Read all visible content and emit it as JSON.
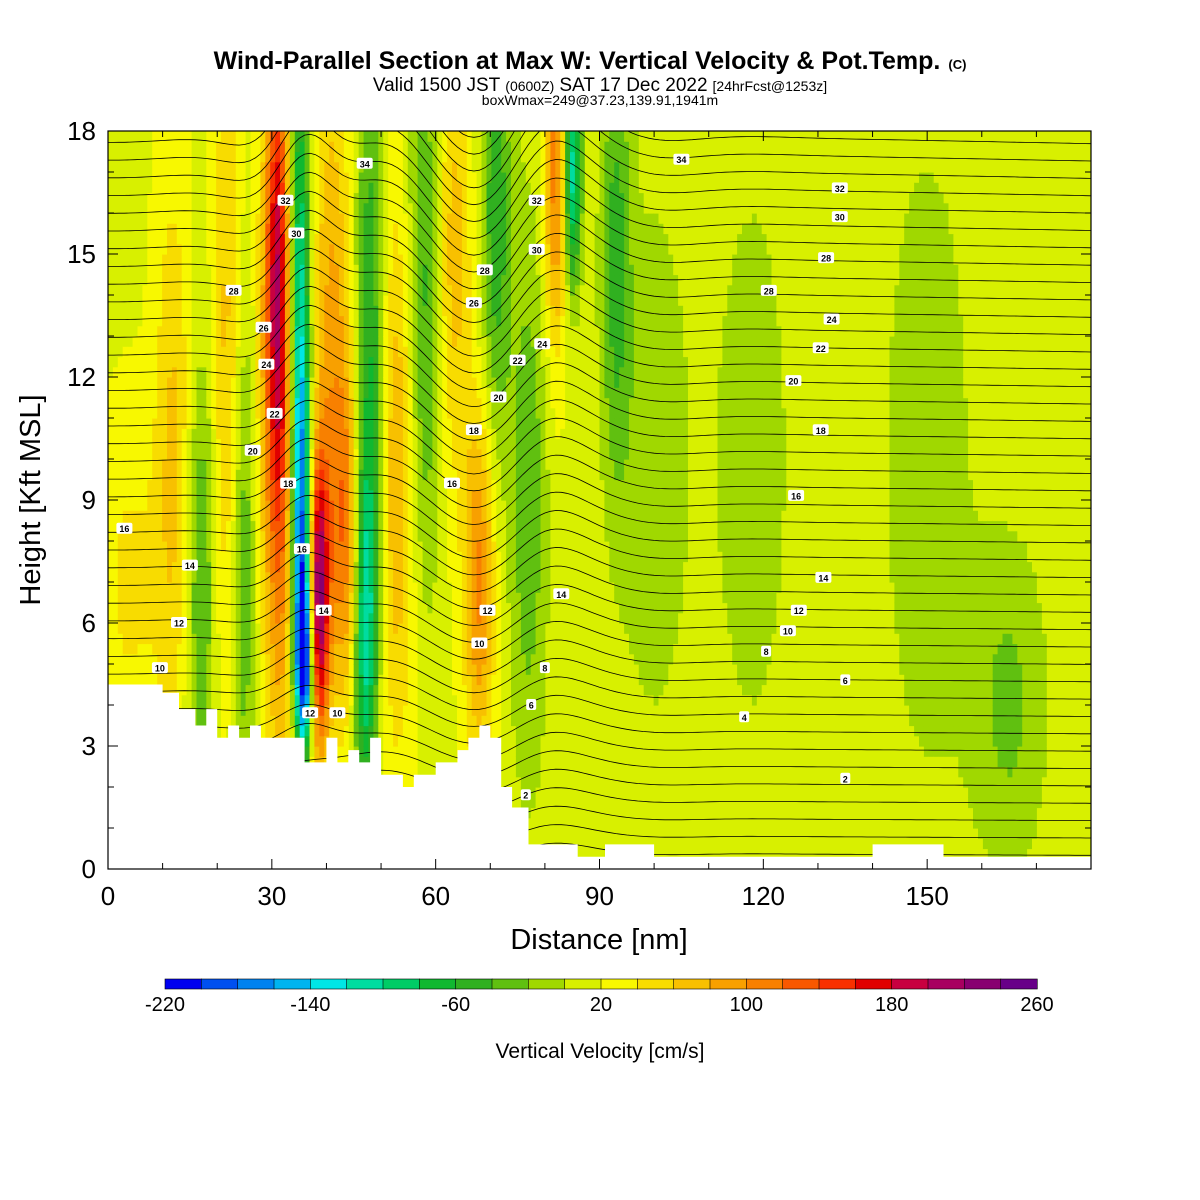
{
  "title": {
    "main": "Wind-Parallel Section at Max W: Vertical Velocity & Pot.Temp.",
    "copyright": "(C)",
    "valid_prefix": "Valid 1500 JST",
    "valid_z": "(0600Z)",
    "valid_date": "SAT 17 Dec 2022",
    "valid_fcst": "[24hrFcst@1253z]",
    "box_info": "boxWmax=249@37.23,139.91,1941m"
  },
  "chart_data": {
    "type": "heatmap",
    "xlabel": "Distance [nm]",
    "ylabel": "Height [Kft MSL]",
    "xlim": [
      0,
      180
    ],
    "ylim": [
      0,
      18
    ],
    "x_ticks": [
      "0",
      "30",
      "60",
      "90",
      "120",
      "150"
    ],
    "x_tick_values": [
      0,
      30,
      60,
      90,
      120,
      150
    ],
    "y_ticks": [
      "0",
      "3",
      "6",
      "9",
      "12",
      "15",
      "18"
    ],
    "y_tick_values": [
      0,
      3,
      6,
      9,
      12,
      15,
      18
    ],
    "colorbar": {
      "label": "Vertical Velocity [cm/s]",
      "tick_labels": [
        "-220",
        "-140",
        "-60",
        "20",
        "100",
        "180",
        "260"
      ],
      "min": -220,
      "max": 260,
      "step": 20,
      "colors": [
        "#0000f0",
        "#0050f0",
        "#0082f0",
        "#00b4f0",
        "#00e6e6",
        "#00dca0",
        "#00cc66",
        "#10b830",
        "#30b020",
        "#60c010",
        "#a0d800",
        "#d8f000",
        "#f8f800",
        "#f8dc00",
        "#f8c000",
        "#f8a000",
        "#f88000",
        "#f85800",
        "#f83000",
        "#e00000",
        "#c80040",
        "#a80060",
        "#880070",
        "#680088"
      ]
    },
    "terrain_kft": [
      [
        0,
        4.5
      ],
      [
        10,
        4.5
      ],
      [
        10,
        4.3
      ],
      [
        13,
        4.3
      ],
      [
        13,
        3.9
      ],
      [
        16,
        3.9
      ],
      [
        16,
        3.5
      ],
      [
        18,
        3.5
      ],
      [
        18,
        3.9
      ],
      [
        20,
        3.9
      ],
      [
        20,
        3.2
      ],
      [
        22,
        3.2
      ],
      [
        22,
        3.5
      ],
      [
        24,
        3.5
      ],
      [
        24,
        3.2
      ],
      [
        26,
        3.2
      ],
      [
        26,
        3.5
      ],
      [
        28,
        3.5
      ],
      [
        28,
        3.2
      ],
      [
        36,
        3.2
      ],
      [
        36,
        2.6
      ],
      [
        40,
        2.6
      ],
      [
        40,
        3.2
      ],
      [
        42,
        3.2
      ],
      [
        42,
        2.6
      ],
      [
        44,
        2.6
      ],
      [
        44,
        2.9
      ],
      [
        46,
        2.9
      ],
      [
        46,
        2.6
      ],
      [
        48,
        2.6
      ],
      [
        48,
        3.2
      ],
      [
        50,
        3.2
      ],
      [
        50,
        2.3
      ],
      [
        54,
        2.3
      ],
      [
        54,
        2.0
      ],
      [
        56,
        2.0
      ],
      [
        56,
        2.3
      ],
      [
        60,
        2.3
      ],
      [
        60,
        2.6
      ],
      [
        64,
        2.6
      ],
      [
        64,
        2.9
      ],
      [
        66,
        2.9
      ],
      [
        66,
        3.2
      ],
      [
        68,
        3.2
      ],
      [
        68,
        3.5
      ],
      [
        70,
        3.5
      ],
      [
        70,
        3.2
      ],
      [
        72,
        3.2
      ],
      [
        72,
        2.0
      ],
      [
        74,
        2.0
      ],
      [
        74,
        1.5
      ],
      [
        77,
        1.5
      ],
      [
        77,
        0.6
      ],
      [
        86,
        0.6
      ],
      [
        86,
        0.3
      ],
      [
        91,
        0.3
      ],
      [
        91,
        0.6
      ],
      [
        100,
        0.6
      ],
      [
        100,
        0.3
      ],
      [
        140,
        0.3
      ],
      [
        140,
        0.6
      ],
      [
        153,
        0.6
      ],
      [
        153,
        0.3
      ],
      [
        180,
        0.3
      ]
    ],
    "w_features": [
      {
        "x": 4,
        "z": 7,
        "w": 30,
        "sx": 4,
        "sz": 3
      },
      {
        "x": 12,
        "z": 10,
        "w": 50,
        "sx": 2.5,
        "sz": 5
      },
      {
        "x": 17,
        "z": 7,
        "w": -60,
        "sx": 2,
        "sz": 4
      },
      {
        "x": 22,
        "z": 12,
        "w": 60,
        "sx": 2,
        "sz": 6
      },
      {
        "x": 25,
        "z": 8,
        "w": -70,
        "sx": 2,
        "sz": 5
      },
      {
        "x": 28,
        "z": 10,
        "w": 40,
        "sx": 2,
        "sz": 5
      },
      {
        "x": 31,
        "z": 15,
        "w": 140,
        "sx": 1.6,
        "sz": 4
      },
      {
        "x": 32,
        "z": 9,
        "w": 90,
        "sx": 2,
        "sz": 5
      },
      {
        "x": 35,
        "z": 14,
        "w": -130,
        "sx": 1.4,
        "sz": 4.5
      },
      {
        "x": 35.5,
        "z": 8,
        "w": -170,
        "sx": 1.3,
        "sz": 3
      },
      {
        "x": 36,
        "z": 5,
        "w": -200,
        "sx": 1.2,
        "sz": 1.5
      },
      {
        "x": 38.5,
        "z": 6.5,
        "w": 210,
        "sx": 1.4,
        "sz": 2.5
      },
      {
        "x": 41,
        "z": 13,
        "w": 70,
        "sx": 2.5,
        "sz": 5
      },
      {
        "x": 44,
        "z": 8,
        "w": 90,
        "sx": 2,
        "sz": 3
      },
      {
        "x": 47,
        "z": 6,
        "w": -130,
        "sx": 1.6,
        "sz": 3
      },
      {
        "x": 48,
        "z": 13,
        "w": -80,
        "sx": 2,
        "sz": 5
      },
      {
        "x": 53,
        "z": 10,
        "w": 70,
        "sx": 2.5,
        "sz": 5
      },
      {
        "x": 58,
        "z": 14,
        "w": -70,
        "sx": 2.5,
        "sz": 5
      },
      {
        "x": 63,
        "z": 15,
        "w": 60,
        "sx": 2.5,
        "sz": 4
      },
      {
        "x": 68,
        "z": 7,
        "w": 90,
        "sx": 2,
        "sz": 3
      },
      {
        "x": 71,
        "z": 16,
        "w": -70,
        "sx": 2,
        "sz": 4
      },
      {
        "x": 77,
        "z": 9,
        "w": -50,
        "sx": 2.5,
        "sz": 5
      },
      {
        "x": 82,
        "z": 17,
        "w": 100,
        "sx": 1.5,
        "sz": 3
      },
      {
        "x": 85,
        "z": 17,
        "w": -130,
        "sx": 1.2,
        "sz": 2
      },
      {
        "x": 93,
        "z": 15,
        "w": -60,
        "sx": 2,
        "sz": 4
      },
      {
        "x": 100,
        "z": 10,
        "w": -30,
        "sx": 5,
        "sz": 5
      },
      {
        "x": 118,
        "z": 10,
        "w": -30,
        "sx": 5,
        "sz": 5
      },
      {
        "x": 150,
        "z": 10,
        "w": -30,
        "sx": 6,
        "sz": 6
      },
      {
        "x": 165,
        "z": 4,
        "w": -40,
        "sx": 5,
        "sz": 3
      }
    ],
    "w_background": 15,
    "theta_labels": [
      {
        "x": 3,
        "z": 8.3,
        "label": "16"
      },
      {
        "x": 15,
        "z": 7.4,
        "label": "14"
      },
      {
        "x": 13,
        "z": 6.0,
        "label": "12"
      },
      {
        "x": 9.5,
        "z": 4.9,
        "label": "10"
      },
      {
        "x": 23,
        "z": 14.1,
        "label": "28"
      },
      {
        "x": 28.5,
        "z": 13.2,
        "label": "26"
      },
      {
        "x": 29,
        "z": 12.3,
        "label": "24"
      },
      {
        "x": 30.5,
        "z": 11.1,
        "label": "22"
      },
      {
        "x": 26.5,
        "z": 10.2,
        "label": "20"
      },
      {
        "x": 33,
        "z": 9.4,
        "label": "18"
      },
      {
        "x": 35.5,
        "z": 7.8,
        "label": "16"
      },
      {
        "x": 39.5,
        "z": 6.3,
        "label": "14"
      },
      {
        "x": 37,
        "z": 3.8,
        "label": "12"
      },
      {
        "x": 42,
        "z": 3.8,
        "label": "10"
      },
      {
        "x": 32.5,
        "z": 16.3,
        "label": "32"
      },
      {
        "x": 34.5,
        "z": 15.5,
        "label": "30"
      },
      {
        "x": 47,
        "z": 17.2,
        "label": "34"
      },
      {
        "x": 63,
        "z": 9.4,
        "label": "16"
      },
      {
        "x": 67,
        "z": 10.7,
        "label": "18"
      },
      {
        "x": 71.5,
        "z": 11.5,
        "label": "20"
      },
      {
        "x": 75,
        "z": 12.4,
        "label": "22"
      },
      {
        "x": 79.5,
        "z": 12.8,
        "label": "24"
      },
      {
        "x": 67,
        "z": 13.8,
        "label": "26"
      },
      {
        "x": 69,
        "z": 14.6,
        "label": "28"
      },
      {
        "x": 78.5,
        "z": 15.1,
        "label": "30"
      },
      {
        "x": 78.5,
        "z": 16.3,
        "label": "32"
      },
      {
        "x": 69.5,
        "z": 6.3,
        "label": "12"
      },
      {
        "x": 68,
        "z": 5.5,
        "label": "10"
      },
      {
        "x": 80,
        "z": 4.9,
        "label": "8"
      },
      {
        "x": 77.5,
        "z": 4.0,
        "label": "6"
      },
      {
        "x": 76.5,
        "z": 1.8,
        "label": "2"
      },
      {
        "x": 83,
        "z": 6.7,
        "label": "14"
      },
      {
        "x": 105,
        "z": 17.3,
        "label": "34"
      },
      {
        "x": 134,
        "z": 16.6,
        "label": "32"
      },
      {
        "x": 134,
        "z": 15.9,
        "label": "30"
      },
      {
        "x": 131.5,
        "z": 14.9,
        "label": "28"
      },
      {
        "x": 121,
        "z": 14.1,
        "label": "28"
      },
      {
        "x": 132.5,
        "z": 13.4,
        "label": "24"
      },
      {
        "x": 130.5,
        "z": 12.7,
        "label": "22"
      },
      {
        "x": 125.5,
        "z": 11.9,
        "label": "20"
      },
      {
        "x": 130.5,
        "z": 10.7,
        "label": "18"
      },
      {
        "x": 126,
        "z": 9.1,
        "label": "16"
      },
      {
        "x": 131,
        "z": 7.1,
        "label": "14"
      },
      {
        "x": 126.5,
        "z": 6.3,
        "label": "12"
      },
      {
        "x": 124.5,
        "z": 5.8,
        "label": "10"
      },
      {
        "x": 120.5,
        "z": 5.3,
        "label": "8"
      },
      {
        "x": 135,
        "z": 4.6,
        "label": "6"
      },
      {
        "x": 116.5,
        "z": 3.7,
        "label": "4"
      },
      {
        "x": 135,
        "z": 2.2,
        "label": "2"
      }
    ]
  }
}
